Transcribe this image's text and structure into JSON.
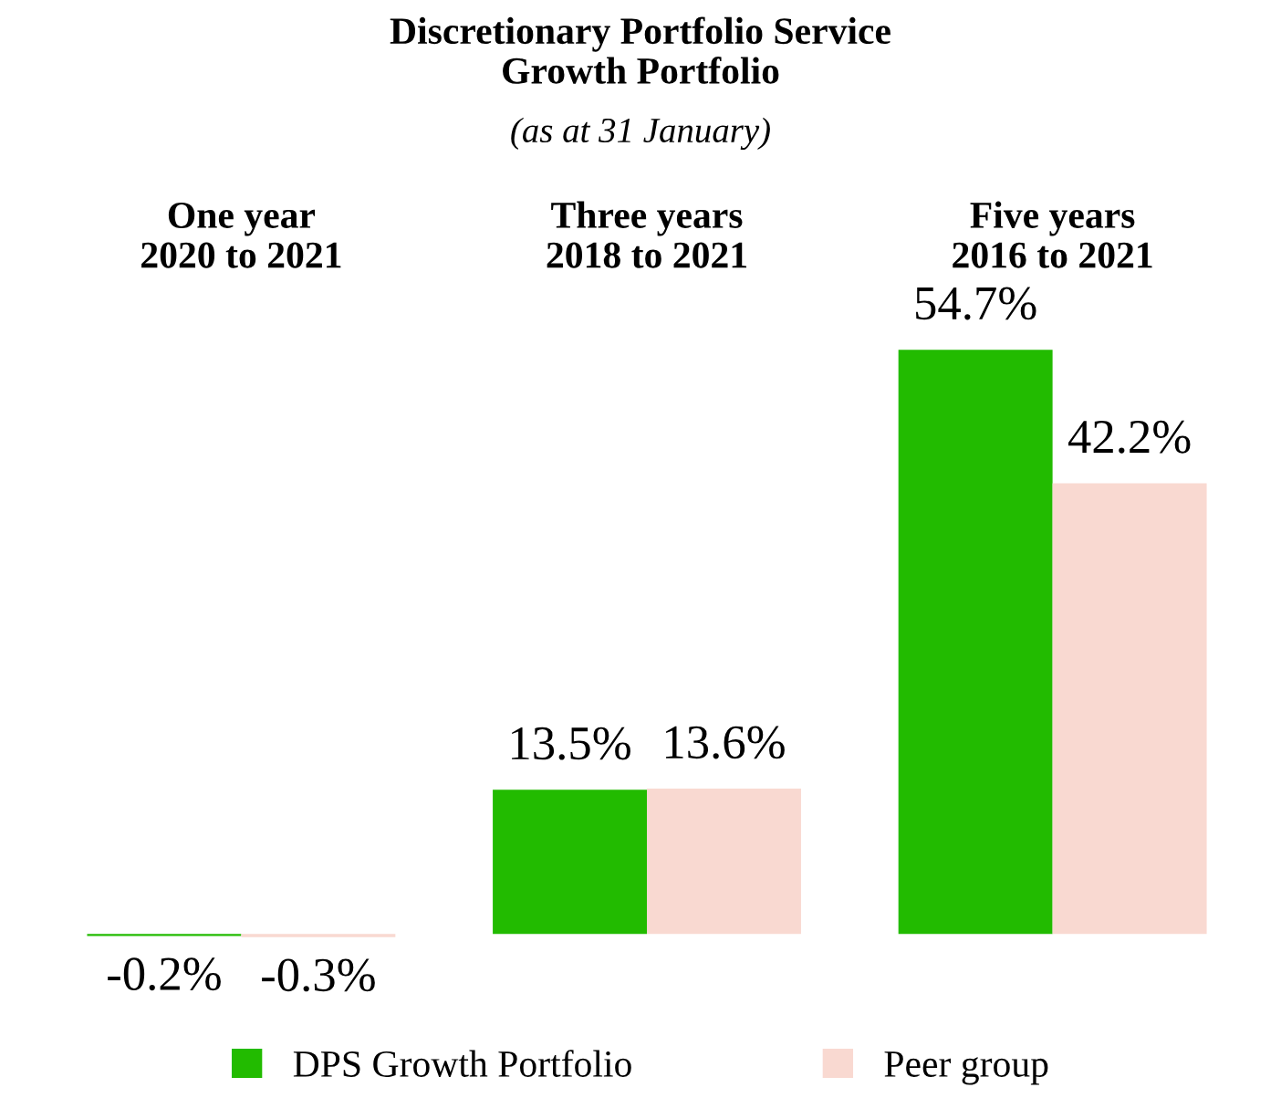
{
  "chart_data": {
    "type": "bar",
    "title": "Discretionary Portfolio Service\nGrowth Portfolio",
    "subtitle": "(as at 31 January)",
    "categories": [
      "One year\n2020 to 2021",
      "Three years\n2018 to 2021",
      "Five years\n2016 to 2021"
    ],
    "series": [
      {
        "name": "DPS Growth Portfolio",
        "color": "#22bb00",
        "values": [
          -0.2,
          13.5,
          54.7
        ],
        "value_labels": [
          "-0.2%",
          "13.5%",
          "54.7%"
        ]
      },
      {
        "name": "Peer group",
        "color": "#f9d9d1",
        "values": [
          -0.3,
          13.6,
          42.2
        ],
        "value_labels": [
          "-0.3%",
          "13.6%",
          "42.2%"
        ]
      }
    ],
    "legend": "bottom",
    "grid": false
  }
}
